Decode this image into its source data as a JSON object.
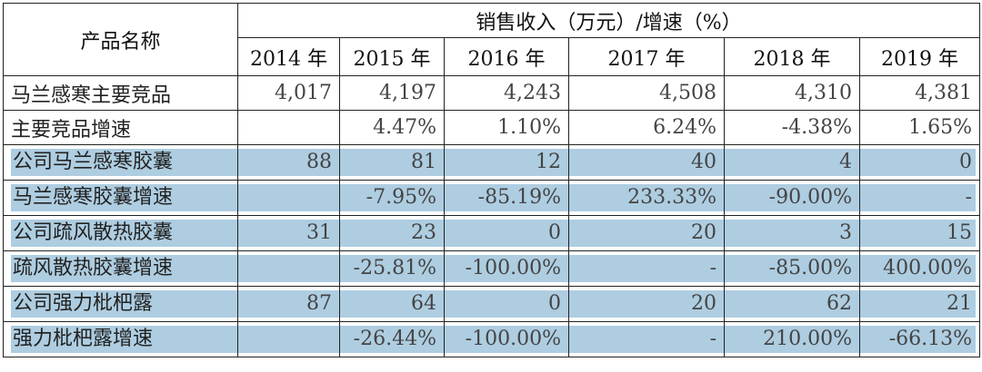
{
  "header": {
    "product_label": "产品名称",
    "group_label": "销售收入（万元）/增速（%）",
    "years": [
      "2014 年",
      "2015 年",
      "2016 年",
      "2017 年",
      "2018 年",
      "2019 年"
    ]
  },
  "rows": [
    {
      "name": "马兰感寒主要竞品",
      "values": [
        "4,017",
        "4,197",
        "4,243",
        "4,508",
        "4,310",
        "4,381"
      ],
      "highlight": false
    },
    {
      "name": "主要竞品增速",
      "values": [
        "",
        "4.47%",
        "1.10%",
        "6.24%",
        "-4.38%",
        "1.65%"
      ],
      "highlight": false
    },
    {
      "name": "公司马兰感寒胶囊",
      "values": [
        "88",
        "81",
        "12",
        "40",
        "4",
        "0"
      ],
      "highlight": true
    },
    {
      "name": "马兰感寒胶囊增速",
      "values": [
        "",
        "-7.95%",
        "-85.19%",
        "233.33%",
        "-90.00%",
        "-"
      ],
      "highlight": true
    },
    {
      "name": "公司疏风散热胶囊",
      "values": [
        "31",
        "23",
        "0",
        "20",
        "3",
        "15"
      ],
      "highlight": true
    },
    {
      "name": "疏风散热胶囊增速",
      "values": [
        "",
        "-25.81%",
        "-100.00%",
        "-",
        "-85.00%",
        "400.00%"
      ],
      "highlight": true
    },
    {
      "name": "公司强力枇杷露",
      "values": [
        "87",
        "64",
        "0",
        "20",
        "62",
        "21"
      ],
      "highlight": true
    },
    {
      "name": "强力枇杷露增速",
      "values": [
        "",
        "-26.44%",
        "-100.00%",
        "-",
        "210.00%",
        "-66.13%"
      ],
      "highlight": true
    }
  ],
  "colors": {
    "highlight": "#aecde1",
    "border": "#222222"
  }
}
